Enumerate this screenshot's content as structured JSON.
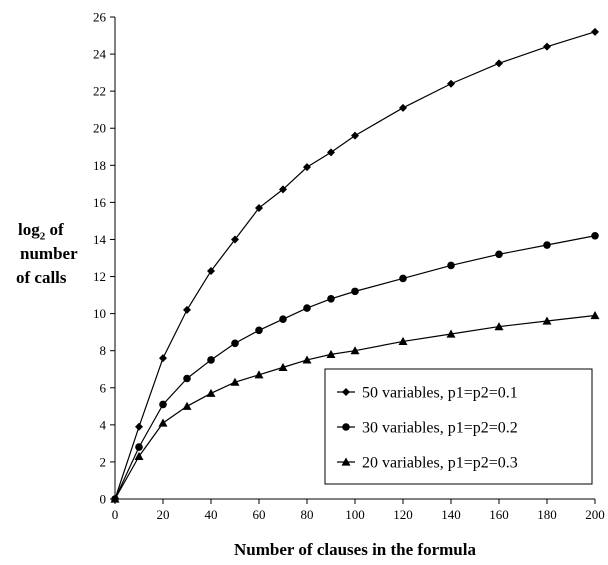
{
  "chart_data": {
    "type": "line",
    "xlabel": "Number of clauses in the formula",
    "ylabel_lines": [
      "log",
      "2",
      " of",
      "number",
      "of calls"
    ],
    "xlim": [
      0,
      200
    ],
    "ylim": [
      0,
      26
    ],
    "xticks": [
      0,
      20,
      40,
      60,
      80,
      100,
      120,
      140,
      160,
      180,
      200
    ],
    "yticks": [
      0,
      2,
      4,
      6,
      8,
      10,
      12,
      14,
      16,
      18,
      20,
      22,
      24,
      26
    ],
    "grid": false,
    "legend_position": "bottom-right",
    "series": [
      {
        "name": "50 variables, p1=p2=0.1",
        "marker": "diamond",
        "x": [
          0,
          10,
          20,
          30,
          40,
          50,
          60,
          70,
          80,
          90,
          100,
          120,
          140,
          160,
          180,
          200
        ],
        "y": [
          0,
          3.9,
          7.6,
          10.2,
          12.3,
          14.0,
          15.7,
          16.7,
          17.9,
          18.7,
          19.6,
          21.1,
          22.4,
          23.5,
          24.4,
          25.2
        ]
      },
      {
        "name": "30 variables, p1=p2=0.2",
        "marker": "circle",
        "x": [
          0,
          10,
          20,
          30,
          40,
          50,
          60,
          70,
          80,
          90,
          100,
          120,
          140,
          160,
          180,
          200
        ],
        "y": [
          0,
          2.8,
          5.1,
          6.5,
          7.5,
          8.4,
          9.1,
          9.7,
          10.3,
          10.8,
          11.2,
          11.9,
          12.6,
          13.2,
          13.7,
          14.2
        ]
      },
      {
        "name": "20 variables, p1=p2=0.3",
        "marker": "triangle",
        "x": [
          0,
          10,
          20,
          30,
          40,
          50,
          60,
          70,
          80,
          90,
          100,
          120,
          140,
          160,
          180,
          200
        ],
        "y": [
          0,
          2.3,
          4.1,
          5.0,
          5.7,
          6.3,
          6.7,
          7.1,
          7.5,
          7.8,
          8.0,
          8.5,
          8.9,
          9.3,
          9.6,
          9.9
        ]
      }
    ]
  }
}
